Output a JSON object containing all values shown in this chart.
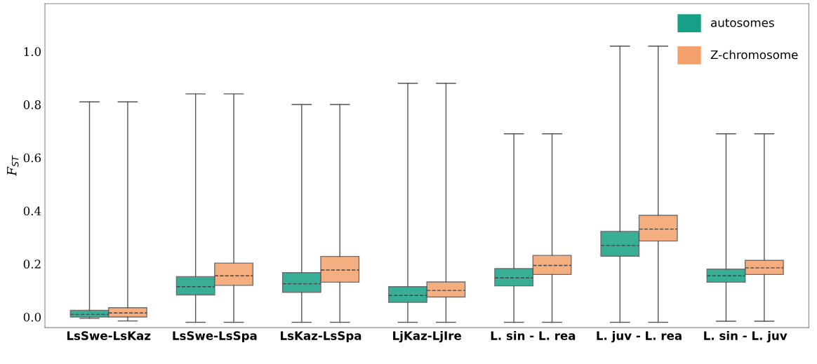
{
  "chart_data": {
    "type": "box",
    "ylabel": "F$_{ST}$",
    "categories": [
      "LsSwe-LsKaz",
      "LsSwe-LsSpa",
      "LsKaz-LsSpa",
      "LjKaz-LjIre",
      "L. sin - L. rea",
      "L. juv - L. rea",
      "L. sin - L. juv"
    ],
    "series": [
      {
        "name": "autosomes",
        "color": "#16a085",
        "boxes": [
          {
            "low": -0.005,
            "q1": 0.0,
            "median": 0.01,
            "q3": 0.025,
            "high": 0.81
          },
          {
            "low": -0.02,
            "q1": 0.083,
            "median": 0.114,
            "q3": 0.152,
            "high": 0.84
          },
          {
            "low": -0.02,
            "q1": 0.093,
            "median": 0.125,
            "q3": 0.167,
            "high": 0.8
          },
          {
            "low": -0.02,
            "q1": 0.055,
            "median": 0.081,
            "q3": 0.114,
            "high": 0.88
          },
          {
            "low": -0.02,
            "q1": 0.117,
            "median": 0.147,
            "q3": 0.182,
            "high": 0.69
          },
          {
            "low": -0.02,
            "q1": 0.229,
            "median": 0.269,
            "q3": 0.322,
            "high": 1.02
          },
          {
            "low": -0.016,
            "q1": 0.131,
            "median": 0.155,
            "q3": 0.18,
            "high": 0.69
          }
        ]
      },
      {
        "name": "Z-chromosome",
        "color": "#f4a06b",
        "boxes": [
          {
            "low": -0.015,
            "q1": 0.0,
            "median": 0.015,
            "q3": 0.035,
            "high": 0.81
          },
          {
            "low": -0.02,
            "q1": 0.119,
            "median": 0.155,
            "q3": 0.203,
            "high": 0.84
          },
          {
            "low": -0.02,
            "q1": 0.131,
            "median": 0.177,
            "q3": 0.228,
            "high": 0.8
          },
          {
            "low": -0.02,
            "q1": 0.075,
            "median": 0.1,
            "q3": 0.132,
            "high": 0.88
          },
          {
            "low": -0.02,
            "q1": 0.16,
            "median": 0.194,
            "q3": 0.232,
            "high": 0.69
          },
          {
            "low": -0.02,
            "q1": 0.286,
            "median": 0.331,
            "q3": 0.383,
            "high": 1.02
          },
          {
            "low": -0.016,
            "q1": 0.16,
            "median": 0.185,
            "q3": 0.213,
            "high": 0.69
          }
        ]
      }
    ],
    "ylim": [
      -0.04,
      1.18
    ],
    "yticks": [
      {
        "value": 0,
        "label": "0.0"
      },
      0.2,
      0.4,
      0.6,
      0.8,
      {
        "value": 1,
        "label": "1.0"
      }
    ],
    "grid": false,
    "legend": "top right"
  }
}
